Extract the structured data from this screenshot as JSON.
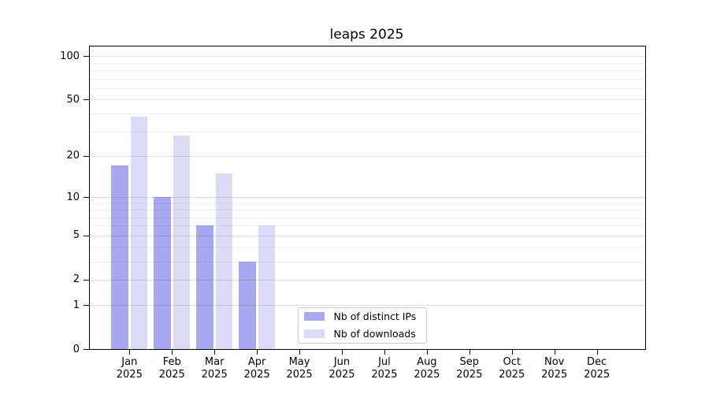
{
  "chart_data": {
    "type": "bar",
    "title": "leaps 2025",
    "categories": [
      "Jan 2025",
      "Feb 2025",
      "Mar 2025",
      "Apr 2025",
      "May 2025",
      "Jun 2025",
      "Jul 2025",
      "Aug 2025",
      "Sep 2025",
      "Oct 2025",
      "Nov 2025",
      "Dec 2025"
    ],
    "series": [
      {
        "name": "Nb of distinct IPs",
        "color": "#a8a8ef",
        "values": [
          17,
          10,
          6,
          3,
          0,
          0,
          0,
          0,
          0,
          0,
          0,
          0
        ]
      },
      {
        "name": "Nb of downloads",
        "color": "#dbdbf7",
        "values": [
          38,
          28,
          15,
          6,
          0,
          0,
          0,
          0,
          0,
          0,
          0,
          0
        ]
      }
    ],
    "xlabel": "",
    "ylabel": "",
    "yscale": "log1p",
    "ylim": [
      0,
      118
    ],
    "yticks": [
      0,
      1,
      2,
      5,
      10,
      20,
      50,
      100
    ],
    "minor_gridlines": [
      3,
      4,
      6,
      7,
      8,
      9,
      30,
      40,
      60,
      70,
      80,
      90
    ],
    "grid": true,
    "grid_over_bars": true,
    "legend_position": "lower center",
    "colors": {
      "axis": "#000000",
      "major_grid": "rgba(0,0,0,0.12)",
      "minor_grid": "rgba(0,0,0,0.055)",
      "background": "#ffffff"
    }
  }
}
